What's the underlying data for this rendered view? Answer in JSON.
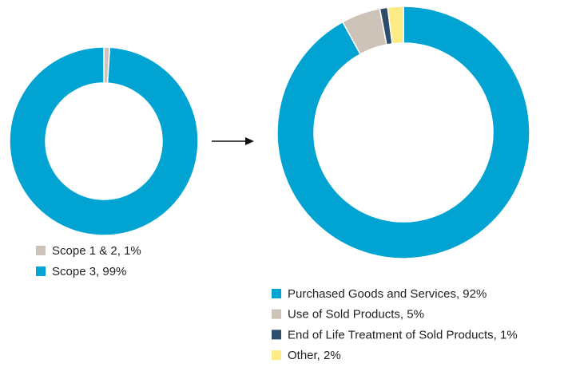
{
  "chart_data": [
    {
      "type": "donut",
      "categories": [
        "Scope 1 & 2, 1%",
        "Scope 3, 99%"
      ],
      "values": [
        1,
        99
      ],
      "colors": [
        "#cdc3b8",
        "#00a3d2"
      ]
    },
    {
      "type": "donut",
      "categories": [
        "Purchased Goods and Services, 92%",
        "Use of Sold Products, 5%",
        "End of Life Treatment of Sold Products, 1%",
        "Other, 2%"
      ],
      "values": [
        92,
        5,
        1,
        2
      ],
      "colors": [
        "#00a3d2",
        "#cdc3b8",
        "#2d4e6b",
        "#fdeb85"
      ]
    }
  ]
}
